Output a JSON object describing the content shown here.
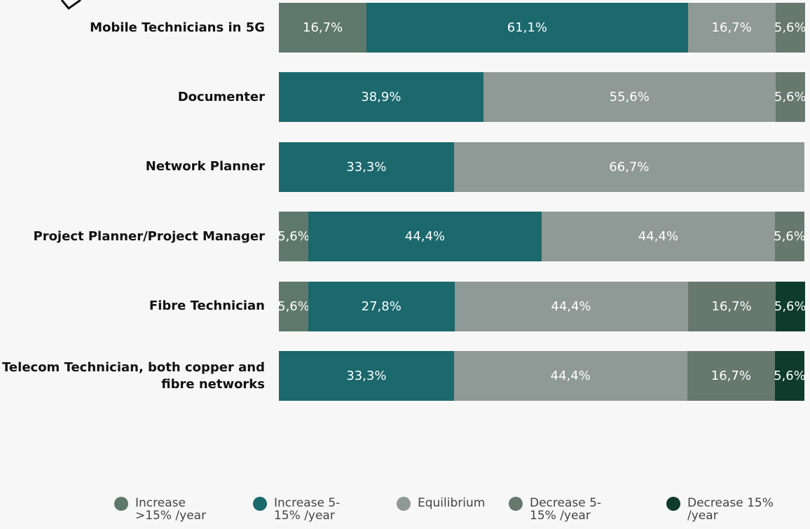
{
  "chart_data": {
    "type": "stacked-bar-horizontal",
    "categories": [
      "Mobile Technicians in 5G",
      "Documenter",
      "Network Planner",
      "Project Planner/Project Manager",
      "Fibre Technician",
      "Telecom Technician, both copper and fibre networks"
    ],
    "xlim": [
      0,
      100
    ],
    "series": [
      {
        "name": "Increase >15% /year",
        "color": "#5f786e",
        "values": [
          16.7,
          null,
          null,
          5.6,
          5.6,
          null
        ],
        "value_labels": [
          "16,7%",
          null,
          null,
          "5,6%",
          "5,6%",
          null
        ]
      },
      {
        "name": "Increase 5-15% /year",
        "color": "#1b686d",
        "values": [
          61.1,
          38.9,
          33.3,
          44.4,
          27.8,
          33.3
        ],
        "value_labels": [
          "61,1%",
          "38,9%",
          "33,3%",
          "44,4%",
          "27,8%",
          "33,3%"
        ]
      },
      {
        "name": "Equilibrium",
        "color": "#8f9995",
        "values": [
          16.7,
          55.6,
          66.7,
          44.4,
          44.4,
          44.4
        ],
        "value_labels": [
          "16,7%",
          "55,6%",
          "66,7%",
          "44,4%",
          "44,4%",
          "44,4%"
        ]
      },
      {
        "name": "Decrease 5-15% /year",
        "color": "#67786f",
        "values": [
          5.6,
          5.6,
          null,
          5.6,
          16.7,
          16.7
        ],
        "value_labels": [
          "5,6%",
          "5,6%",
          null,
          "5,6%",
          "16,7%",
          "16,7%"
        ]
      },
      {
        "name": "Decrease 15% /year",
        "color": "#0e3b2b",
        "values": [
          null,
          null,
          null,
          null,
          5.6,
          5.6
        ],
        "value_labels": [
          null,
          null,
          null,
          null,
          "5,6%",
          "5,6%"
        ]
      }
    ]
  }
}
